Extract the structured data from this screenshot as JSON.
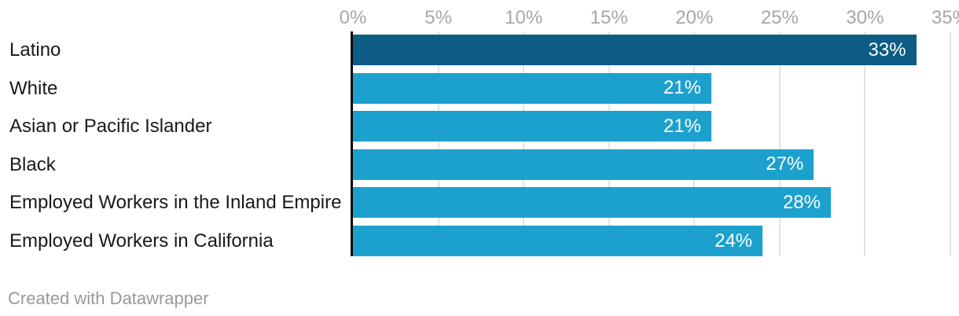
{
  "chart_data": {
    "type": "bar",
    "orientation": "horizontal",
    "categories": [
      "Latino",
      "White",
      "Asian or Pacific Islander",
      "Black",
      "Employed Workers in the Inland Empire",
      "Employed Workers in California"
    ],
    "values": [
      33,
      21,
      21,
      27,
      28,
      24
    ],
    "value_labels": [
      "33%",
      "21%",
      "21%",
      "27%",
      "28%",
      "24%"
    ],
    "highlight_index": 0,
    "x_axis": {
      "min": 0,
      "max": 35,
      "position": "top",
      "grid": true,
      "tick_values": [
        0,
        5,
        10,
        15,
        20,
        25,
        30,
        35
      ],
      "tick_labels": [
        "0%",
        "5%",
        "10%",
        "15%",
        "20%",
        "25%",
        "30%",
        "35%"
      ]
    },
    "colors": {
      "bar": "#1ca1ce",
      "bar_highlight": "#0d5c85",
      "grid": "#e2e2e2",
      "axis_line": "#0a0a0a",
      "tick_label": "#a6a6a6",
      "category_label": "#191919",
      "value_label": "#ffffff"
    }
  },
  "footer": {
    "credit": "Created with Datawrapper"
  }
}
